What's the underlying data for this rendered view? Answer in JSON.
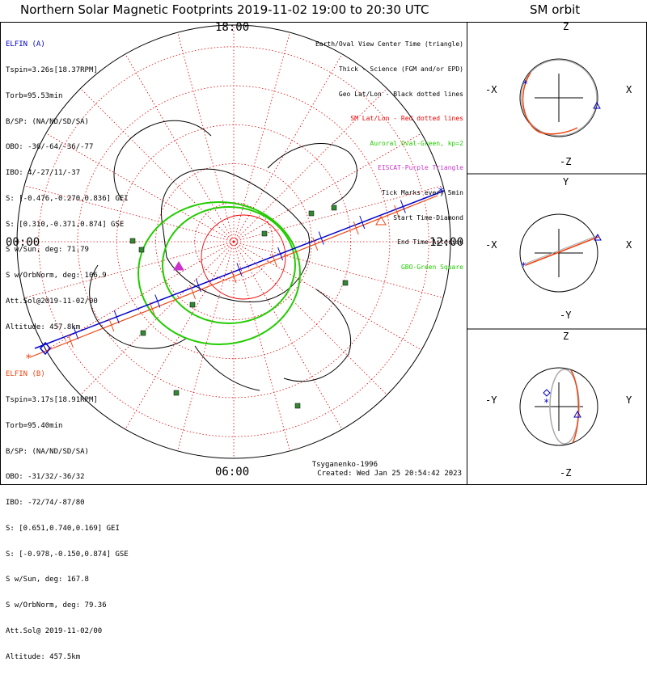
{
  "header": {
    "title": "Northern Solar Magnetic Footprints 2019-11-02 19:00 to 20:30 UTC",
    "orbit_title": "SM orbit"
  },
  "colors": {
    "elfin_a": "#0000cc",
    "elfin_b": "#ee4411",
    "grid": "#ee0000",
    "oval": "#22cc00",
    "coast": "#000000",
    "eiscat": "#cc33cc",
    "station": "#338833"
  },
  "elfin_a": {
    "name": "ELFIN (A)",
    "lines": [
      "Tspin=3.26s[18.37RPM]",
      "Torb=95.53min",
      "B/SP: (NA/ND/SD/SA)",
      "OBO: -36/-64/-36/-77",
      "IBO: 4/-27/11/-37",
      "S: [-0.476,-0.270,0.836] GEI",
      "S: [0.310,-0.371,0.874] GSE",
      "S w/Sun, deg: 71.79",
      "S w/OrbNorm, deg: 106.9",
      "Att.Sol@2019-11-02/00",
      "Altitude: 457.8km"
    ]
  },
  "elfin_b": {
    "name": "ELFIN (B)",
    "lines": [
      "Tspin=3.17s[18.91RPM]",
      "Torb=95.40min",
      "B/SP: (NA/ND/SD/SA)",
      "OBO: -31/32/-36/32",
      "IBO: -72/74/-87/80",
      "S: [0.651,0.740,0.169] GEI",
      "S: [-0.978,-0.150,0.874] GSE",
      "S w/Sun, deg: 167.8",
      "S w/OrbNorm, deg: 79.36",
      "Att.Sol@ 2019-11-02/00",
      "Altitude: 457.5km"
    ]
  },
  "legend": [
    {
      "text": "Earth/Oval View Center Time (triangle)",
      "color": "#000000"
    },
    {
      "text": "Thick - Science (FGM and/or EPD)",
      "color": "#000000"
    },
    {
      "text": "Geo Lat/Lon - Black dotted lines",
      "color": "#000000"
    },
    {
      "text": "SM Lat/Lon - Red dotted lines",
      "color": "#ee0000"
    },
    {
      "text": "Auroral Oval-Green, kp=2",
      "color": "#22cc00"
    },
    {
      "text": "EISCAT-Purple Triangle",
      "color": "#cc33cc"
    },
    {
      "text": "Tick Marks every 5min",
      "color": "#000000"
    },
    {
      "text": "Start Time-Diamond",
      "color": "#000000"
    },
    {
      "text": "End Time-Asterisk",
      "color": "#000000"
    },
    {
      "text": "GBO-Green Square",
      "color": "#22cc00"
    }
  ],
  "map_labels": {
    "mlt_top": "18:00",
    "mlt_left": "00:00",
    "mlt_right": "12:00",
    "mlt_bottom": "06:00"
  },
  "footer": {
    "model": "Tsyganenko-1996",
    "created": "Created: Wed Jan 25 20:54:42 2023"
  },
  "orbit_panels": [
    {
      "top": "Z",
      "bottom": "-Z",
      "left": "-X",
      "right": "X"
    },
    {
      "top": "Y",
      "bottom": "-Y",
      "left": "-X",
      "right": "X"
    },
    {
      "top": "Z",
      "bottom": "-Z",
      "left": "-Y",
      "right": "Y"
    }
  ],
  "chart_data": [
    {
      "type": "polar",
      "title": "Northern Solar Magnetic Footprints 2019-11-02 19:00 to 20:30 UTC",
      "projection": "north polar, SM coordinates",
      "mlt_labels": [
        "00:00",
        "06:00",
        "12:00",
        "18:00"
      ],
      "grid": true,
      "series": [
        {
          "name": "ELFIN (A)",
          "color": "#0000cc"
        },
        {
          "name": "ELFIN (B)",
          "color": "#ee4411"
        }
      ]
    },
    {
      "type": "line",
      "title": "SM orbit",
      "panels": [
        "X-Z",
        "X-Y",
        "Y-Z"
      ]
    }
  ]
}
